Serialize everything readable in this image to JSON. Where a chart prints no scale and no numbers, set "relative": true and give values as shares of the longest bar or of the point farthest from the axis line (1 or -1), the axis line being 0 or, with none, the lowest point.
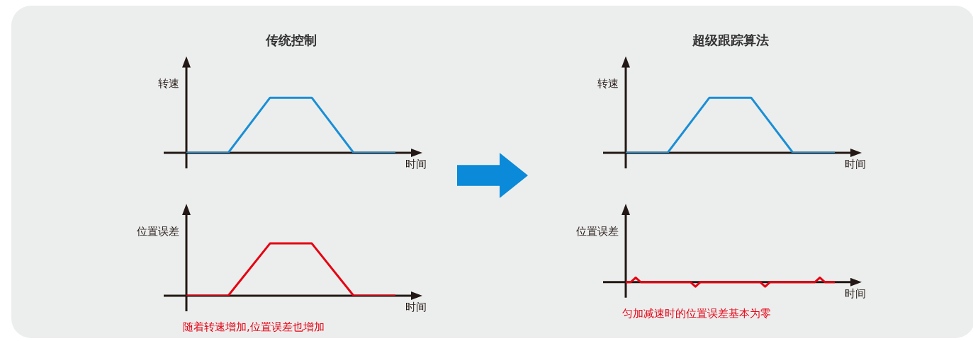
{
  "chart_data": [
    {
      "type": "line",
      "title": "传统控制",
      "ylabel": "转速",
      "xlabel": "时间",
      "relative": true,
      "categories": [
        null,
        null,
        null,
        null,
        null,
        null
      ],
      "series": [
        {
          "color": "#1a8fd6",
          "values": [
            0,
            0,
            1,
            1,
            0,
            0
          ]
        }
      ]
    },
    {
      "type": "line",
      "title": "超级跟踪算法",
      "ylabel": "转速",
      "xlabel": "时间",
      "relative": true,
      "categories": [
        null,
        null,
        null,
        null,
        null,
        null
      ],
      "series": [
        {
          "color": "#1a8fd6",
          "values": [
            0,
            0,
            1,
            1,
            0,
            0
          ]
        }
      ]
    },
    {
      "type": "line",
      "ylabel": "位置误差",
      "xlabel": "时间",
      "relative": true,
      "categories": [
        null,
        null,
        null,
        null,
        null,
        null
      ],
      "annotations": [
        "随着转速增加,位置误差也增加"
      ],
      "series": [
        {
          "color": "#e60012",
          "values": [
            0,
            0,
            1,
            1,
            0,
            0
          ]
        }
      ]
    },
    {
      "type": "line",
      "ylabel": "位置误差",
      "xlabel": "时间",
      "relative": true,
      "categories": [
        null,
        null,
        null,
        null,
        null,
        null,
        null,
        null,
        null,
        null,
        null,
        null,
        null,
        null,
        null,
        null,
        null,
        null,
        null,
        null,
        null,
        null,
        null,
        null,
        null,
        null,
        null,
        null,
        null,
        null,
        null,
        null,
        null,
        null,
        null,
        null,
        null,
        null,
        null,
        null,
        null,
        null,
        null
      ],
      "annotations": [
        "匀加减速时的位置误差基本为零"
      ],
      "series": [
        {
          "color": "#e60012",
          "values": [
            0,
            0,
            1,
            0,
            0,
            0,
            0,
            0,
            0,
            0,
            0,
            0,
            0,
            0,
            -1,
            0,
            0,
            0,
            0,
            0,
            0,
            0,
            0,
            0,
            0,
            0,
            0,
            0,
            -1,
            0,
            0,
            0,
            0,
            0,
            0,
            0,
            0,
            0,
            0,
            1,
            0,
            0,
            0
          ]
        }
      ]
    }
  ]
}
